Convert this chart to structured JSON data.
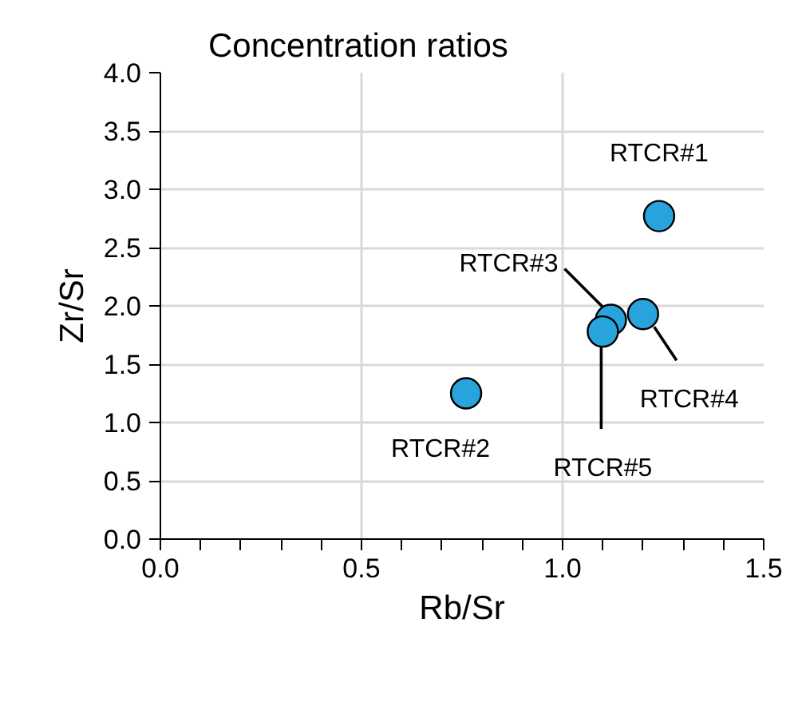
{
  "chart_data": {
    "type": "scatter",
    "title": "Concentration ratios",
    "xlabel": "Rb/Sr",
    "ylabel": "Zr/Sr",
    "x": [
      1.24,
      0.76,
      1.12,
      1.2,
      1.1
    ],
    "series": [
      {
        "color": "#29a3dc",
        "values": [
          2.77,
          1.25,
          1.88,
          1.93,
          1.78
        ]
      }
    ],
    "xlim": [
      0,
      1.5
    ],
    "ylim": [
      0,
      4
    ],
    "xticks": [
      {
        "value": 0,
        "label": "0.0"
      },
      {
        "value": 0.1,
        "label": null
      },
      {
        "value": 0.2,
        "label": null
      },
      {
        "value": 0.3,
        "label": null
      },
      {
        "value": 0.4,
        "label": null
      },
      {
        "value": 0.5,
        "label": "0.5"
      },
      {
        "value": 0.6,
        "label": null
      },
      {
        "value": 0.7,
        "label": null
      },
      {
        "value": 0.8,
        "label": null
      },
      {
        "value": 0.9,
        "label": null
      },
      {
        "value": 1,
        "label": "1.0"
      },
      {
        "value": 1.1,
        "label": null
      },
      {
        "value": 1.2,
        "label": null
      },
      {
        "value": 1.3,
        "label": null
      },
      {
        "value": 1.4,
        "label": null
      },
      {
        "value": 1.5,
        "label": "1.5"
      }
    ],
    "yticks": [
      {
        "value": 0,
        "label": "0.0"
      },
      {
        "value": 0.5,
        "label": "0.5"
      },
      {
        "value": 1,
        "label": "1.0"
      },
      {
        "value": 1.5,
        "label": "1.5"
      },
      {
        "value": 2,
        "label": "2.0"
      },
      {
        "value": 2.5,
        "label": "2.5"
      },
      {
        "value": 3,
        "label": "3.0"
      },
      {
        "value": 3.5,
        "label": "3.5"
      },
      {
        "value": 4,
        "label": "4.0"
      }
    ],
    "grid": true,
    "marker": "circle",
    "annotations": [
      {
        "text": "RTCR#1",
        "x": 1.24,
        "y": 2.77
      },
      {
        "text": "RTCR#2",
        "x": 0.76,
        "y": 1.25
      },
      {
        "text": "RTCR#3",
        "x": 1.12,
        "y": 1.88
      },
      {
        "text": "RTCR#4",
        "x": 1.2,
        "y": 1.93
      },
      {
        "text": "RTCR#5",
        "x": 1.1,
        "y": 1.78
      }
    ]
  }
}
